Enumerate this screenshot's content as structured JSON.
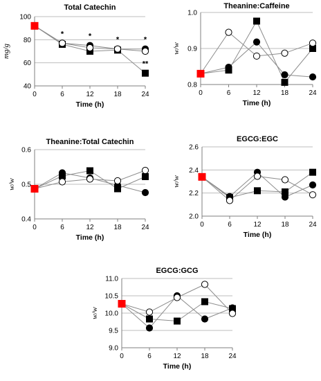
{
  "colors": {
    "initial": "#ff0000",
    "series_line": "#8c8c8c",
    "grid": "#bdbdbd",
    "axis": "#7f7f7f",
    "filled_marker": "#000000",
    "open_marker_fill": "#ffffff"
  },
  "chart_data": [
    {
      "type": "line",
      "title": "Total Catechin",
      "xlabel": "Time (h)",
      "ylabel": "mg/g",
      "x": [
        0,
        6,
        12,
        18,
        24
      ],
      "xlim": [
        0,
        24
      ],
      "ylim": [
        40,
        100
      ],
      "yticks": [
        40,
        60,
        80,
        100
      ],
      "grid": true,
      "initial_value": 92,
      "series": [
        {
          "marker": "circle-filled",
          "values": [
            92,
            77,
            75,
            72,
            72
          ]
        },
        {
          "marker": "square-filled",
          "values": [
            92,
            76,
            70,
            71,
            51
          ]
        },
        {
          "marker": "circle-open",
          "values": [
            92,
            77,
            73,
            72,
            70
          ]
        }
      ],
      "annotations": [
        {
          "x": 6,
          "y": 83,
          "text": "*"
        },
        {
          "x": 12,
          "y": 81,
          "text": "*"
        },
        {
          "x": 18,
          "y": 78,
          "text": "*"
        },
        {
          "x": 24,
          "y": 78,
          "text": "*"
        },
        {
          "x": 24,
          "y": 57,
          "text": "**"
        }
      ]
    },
    {
      "type": "line",
      "title": "Theanine:Caffeine",
      "xlabel": "Time (h)",
      "ylabel": "w/w",
      "x": [
        0,
        6,
        12,
        18,
        24
      ],
      "xlim": [
        0,
        24
      ],
      "ylim": [
        0.8,
        1.0
      ],
      "yticks": [
        "0.8",
        "0.9",
        "1.0"
      ],
      "grid": true,
      "initial_value": 0.83,
      "series": [
        {
          "marker": "circle-filled",
          "values": [
            0.83,
            0.848,
            0.918,
            0.827,
            0.821
          ]
        },
        {
          "marker": "square-filled",
          "values": [
            0.83,
            0.84,
            0.976,
            0.806,
            0.9
          ]
        },
        {
          "marker": "circle-open",
          "values": [
            0.83,
            0.945,
            0.879,
            0.887,
            0.915
          ]
        }
      ],
      "annotations": []
    },
    {
      "type": "line",
      "title": "Theanine:Total Catechin",
      "xlabel": "Time (h)",
      "ylabel": "w/w",
      "x": [
        0,
        6,
        12,
        18,
        24
      ],
      "xlim": [
        0,
        24
      ],
      "ylim": [
        0.4,
        0.6
      ],
      "yticks": [
        "0.4",
        "0.5",
        "0.6"
      ],
      "grid": true,
      "initial_value": 0.487,
      "series": [
        {
          "marker": "circle-filled",
          "values": [
            0.487,
            0.533,
            0.518,
            0.497,
            0.476
          ]
        },
        {
          "marker": "square-filled",
          "values": [
            0.487,
            0.524,
            0.539,
            0.487,
            0.522
          ]
        },
        {
          "marker": "circle-open",
          "values": [
            0.487,
            0.507,
            0.515,
            0.51,
            0.54
          ]
        }
      ],
      "annotations": []
    },
    {
      "type": "line",
      "title": "EGCG:EGC",
      "xlabel": "Time (h)",
      "ylabel": "w/w",
      "x": [
        0,
        6,
        12,
        18,
        24
      ],
      "xlim": [
        0,
        24
      ],
      "ylim": [
        2.0,
        2.6
      ],
      "yticks": [
        "2.0",
        "2.2",
        "2.4",
        "2.6"
      ],
      "grid": true,
      "initial_value": 2.34,
      "series": [
        {
          "marker": "circle-filled",
          "values": [
            2.34,
            2.17,
            2.38,
            2.165,
            2.27
          ]
        },
        {
          "marker": "square-filled",
          "values": [
            2.34,
            2.16,
            2.22,
            2.21,
            2.38
          ]
        },
        {
          "marker": "circle-open",
          "values": [
            2.34,
            2.135,
            2.345,
            2.315,
            2.185
          ]
        }
      ],
      "annotations": []
    },
    {
      "type": "line",
      "title": "EGCG:GCG",
      "xlabel": "Time (h)",
      "ylabel": "w/w",
      "x": [
        0,
        6,
        12,
        18,
        24
      ],
      "xlim": [
        0,
        24
      ],
      "ylim": [
        9.0,
        11.0
      ],
      "yticks": [
        "9.0",
        "9.5",
        "10.0",
        "10.5",
        "11.0"
      ],
      "grid": true,
      "initial_value": 10.27,
      "series": [
        {
          "marker": "circle-filled",
          "values": [
            10.27,
            9.57,
            10.5,
            9.83,
            10.15
          ]
        },
        {
          "marker": "square-filled",
          "values": [
            10.27,
            9.83,
            9.77,
            10.33,
            10.13
          ]
        },
        {
          "marker": "circle-open",
          "values": [
            10.27,
            10.03,
            10.45,
            10.83,
            9.99
          ]
        }
      ],
      "annotations": []
    }
  ]
}
